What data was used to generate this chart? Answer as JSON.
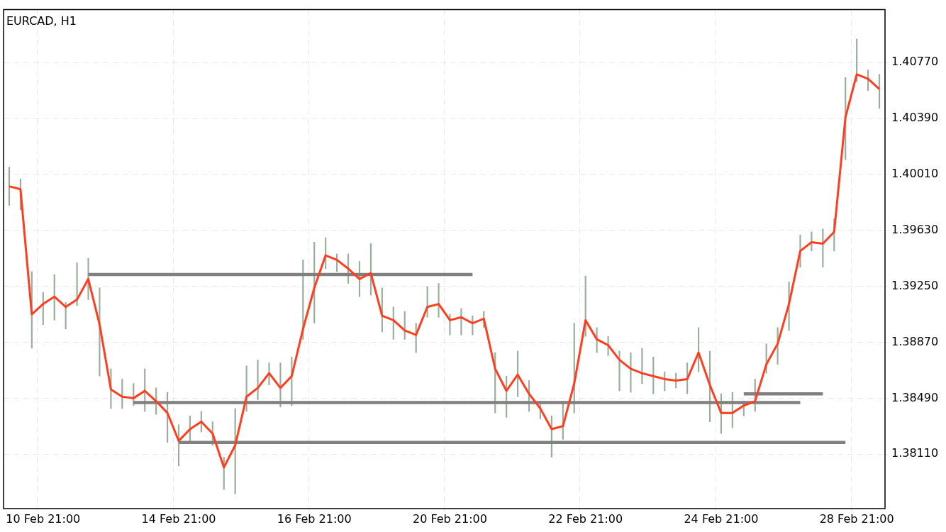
{
  "chart_data": {
    "type": "line",
    "title": "EURCAD, H1",
    "categories": [
      null,
      null,
      null,
      "10 Feb 21:00",
      null,
      null,
      null,
      null,
      null,
      null,
      null,
      null,
      null,
      null,
      null,
      "14 Feb 21:00",
      null,
      null,
      null,
      null,
      null,
      null,
      null,
      null,
      null,
      null,
      null,
      "16 Feb 21:00",
      null,
      null,
      null,
      null,
      null,
      null,
      null,
      null,
      null,
      null,
      null,
      "20 Feb 21:00",
      null,
      null,
      null,
      null,
      null,
      null,
      null,
      null,
      null,
      null,
      null,
      "22 Feb 21:00",
      null,
      null,
      null,
      null,
      null,
      null,
      null,
      null,
      null,
      null,
      null,
      "24 Feb 21:00",
      null,
      null,
      null,
      null,
      null,
      null,
      null,
      null,
      null,
      null,
      null,
      "28 Feb 21:00",
      null,
      null
    ],
    "ylim": [
      1.3774,
      1.4113
    ],
    "yticks": [
      {
        "value": 1.3811,
        "label": "1.38110"
      },
      {
        "value": 1.3849,
        "label": "1.38490"
      },
      {
        "value": 1.3887,
        "label": "1.38870"
      },
      {
        "value": 1.3925,
        "label": "1.39250"
      },
      {
        "value": 1.3963,
        "label": "1.39630"
      },
      {
        "value": 1.4001,
        "label": "1.40010"
      },
      {
        "value": 1.4039,
        "label": "1.40390"
      },
      {
        "value": 1.4077,
        "label": "1.40770"
      }
    ],
    "grid": true,
    "marker": "none",
    "series": [
      {
        "type": "bar",
        "color": "#9aad9a",
        "base": [
          1.398,
          1.3977,
          1.3883,
          1.3899,
          1.3902,
          1.3896,
          1.3912,
          1.3916,
          1.3864,
          1.3842,
          1.3842,
          1.3844,
          1.384,
          1.3838,
          1.3819,
          1.3803,
          1.3819,
          1.3826,
          1.3817,
          1.3787,
          1.3784,
          1.384,
          1.3848,
          1.3858,
          1.3843,
          1.3844,
          1.3889,
          1.39,
          1.3937,
          1.3935,
          1.3927,
          1.3918,
          1.3919,
          1.3894,
          1.3889,
          1.3889,
          1.388,
          1.3904,
          1.3904,
          1.3892,
          1.3892,
          1.3892,
          1.3897,
          1.3839,
          1.3836,
          1.385,
          1.384,
          1.3835,
          1.3809,
          1.3821,
          1.3839,
          1.3891,
          1.388,
          1.3878,
          1.3854,
          1.3853,
          1.3859,
          1.3852,
          1.3854,
          1.3856,
          1.3852,
          1.3867,
          1.3833,
          1.3825,
          1.3829,
          1.3837,
          1.384,
          1.3866,
          1.3872,
          1.3895,
          1.3938,
          1.3949,
          1.3938,
          1.3949,
          1.4011,
          1.4064,
          1.4058,
          1.4046
        ],
        "values": [
          0.0026,
          0.0021,
          0.0052,
          0.0022,
          0.0031,
          0.0018,
          0.0029,
          0.0028,
          0.006,
          0.0027,
          0.002,
          0.0015,
          0.0029,
          0.0018,
          0.0034,
          0.0028,
          0.0018,
          0.0014,
          0.0016,
          0.0022,
          0.0058,
          0.0031,
          0.0027,
          0.0015,
          0.003,
          0.0033,
          0.0054,
          0.0055,
          0.0021,
          0.0012,
          0.002,
          0.0024,
          0.0035,
          0.003,
          0.0022,
          0.0019,
          0.002,
          0.0021,
          0.0023,
          0.0014,
          0.0018,
          0.0013,
          0.0011,
          0.0041,
          0.0028,
          0.0031,
          0.0021,
          0.0012,
          0.0028,
          0.0026,
          0.0061,
          0.0041,
          0.0017,
          0.0013,
          0.0027,
          0.0027,
          0.0024,
          0.0025,
          0.0013,
          0.001,
          0.0021,
          0.003,
          0.0048,
          0.0027,
          0.0024,
          0.001,
          0.0022,
          0.002,
          0.0025,
          0.0033,
          0.0022,
          0.0013,
          0.0026,
          0.0022,
          0.0056,
          0.0029,
          0.0014,
          0.0023
        ]
      },
      {
        "color": "#808080",
        "values": [
          null,
          null,
          null,
          null,
          null,
          null,
          null,
          1.3933,
          null,
          null,
          null,
          null,
          null,
          null,
          null,
          null,
          null,
          null,
          null,
          null,
          null,
          null,
          null,
          null,
          null,
          null,
          null,
          null,
          null,
          null,
          null,
          null,
          null,
          null,
          null,
          null,
          null,
          null,
          null,
          null,
          null,
          1.3933,
          null,
          null,
          null,
          null,
          null,
          null,
          null,
          null,
          null,
          null,
          null,
          null,
          null,
          null,
          null,
          null,
          null,
          null,
          null,
          null,
          null,
          null,
          null,
          null,
          null,
          null,
          null,
          null,
          null,
          null,
          null,
          null,
          null,
          null,
          null,
          null
        ]
      },
      {
        "color": "#808080",
        "values": [
          null,
          null,
          null,
          null,
          null,
          null,
          null,
          null,
          null,
          null,
          null,
          1.3846,
          null,
          null,
          null,
          null,
          null,
          null,
          null,
          null,
          null,
          null,
          null,
          null,
          null,
          null,
          null,
          null,
          null,
          null,
          null,
          null,
          null,
          null,
          null,
          null,
          null,
          null,
          null,
          null,
          null,
          null,
          null,
          null,
          null,
          null,
          null,
          null,
          null,
          null,
          null,
          null,
          null,
          null,
          null,
          null,
          null,
          null,
          null,
          null,
          null,
          null,
          null,
          null,
          null,
          null,
          null,
          null,
          null,
          null,
          1.3846,
          null,
          null,
          null,
          null,
          null,
          null,
          null
        ]
      },
      {
        "color": "#808080",
        "values": [
          null,
          null,
          null,
          null,
          null,
          null,
          null,
          null,
          null,
          null,
          null,
          null,
          null,
          null,
          null,
          1.3819,
          null,
          null,
          null,
          null,
          null,
          null,
          null,
          null,
          null,
          null,
          null,
          null,
          null,
          null,
          null,
          null,
          null,
          null,
          null,
          null,
          null,
          null,
          null,
          null,
          null,
          null,
          null,
          null,
          null,
          null,
          null,
          null,
          null,
          null,
          null,
          null,
          null,
          null,
          null,
          null,
          null,
          null,
          null,
          null,
          null,
          null,
          null,
          null,
          null,
          null,
          null,
          null,
          null,
          null,
          null,
          null,
          null,
          null,
          1.3819,
          null,
          null,
          null
        ]
      },
      {
        "color": "#808080",
        "values": [
          null,
          null,
          null,
          null,
          null,
          null,
          null,
          null,
          null,
          null,
          null,
          null,
          null,
          null,
          null,
          null,
          null,
          null,
          null,
          null,
          null,
          null,
          null,
          null,
          null,
          null,
          null,
          null,
          null,
          null,
          null,
          null,
          null,
          null,
          null,
          null,
          null,
          null,
          null,
          null,
          null,
          null,
          null,
          null,
          null,
          null,
          null,
          null,
          null,
          null,
          null,
          null,
          null,
          null,
          null,
          null,
          null,
          null,
          null,
          null,
          null,
          null,
          null,
          null,
          null,
          1.3852,
          null,
          null,
          null,
          null,
          null,
          null,
          1.3852,
          null,
          null,
          null,
          null,
          null
        ]
      },
      {
        "color": "#ff3d1f",
        "values": [
          1.3993,
          1.3991,
          1.3906,
          1.3913,
          1.3918,
          1.3911,
          1.3916,
          1.393,
          1.3899,
          1.3855,
          1.385,
          1.3849,
          1.3854,
          1.3847,
          1.3839,
          1.382,
          1.3828,
          1.3833,
          1.3825,
          1.3802,
          1.3817,
          1.385,
          1.3856,
          1.3866,
          1.3856,
          1.3864,
          1.3896,
          1.3924,
          1.3946,
          1.3943,
          1.3937,
          1.393,
          1.3934,
          1.3905,
          1.3902,
          1.3895,
          1.3892,
          1.3911,
          1.3913,
          1.3902,
          1.3904,
          1.39,
          1.3903,
          1.3869,
          1.3854,
          1.3865,
          1.3852,
          1.3842,
          1.3828,
          1.383,
          1.3859,
          1.3902,
          1.3889,
          1.3885,
          1.3875,
          1.3869,
          1.3866,
          1.3864,
          1.3862,
          1.3861,
          1.3862,
          1.388,
          1.3858,
          1.3839,
          1.3839,
          1.3844,
          1.3847,
          1.3872,
          1.3886,
          1.3913,
          1.3949,
          1.3955,
          1.3954,
          1.3962,
          1.404,
          1.4069,
          1.4066,
          1.4059
        ]
      }
    ]
  }
}
